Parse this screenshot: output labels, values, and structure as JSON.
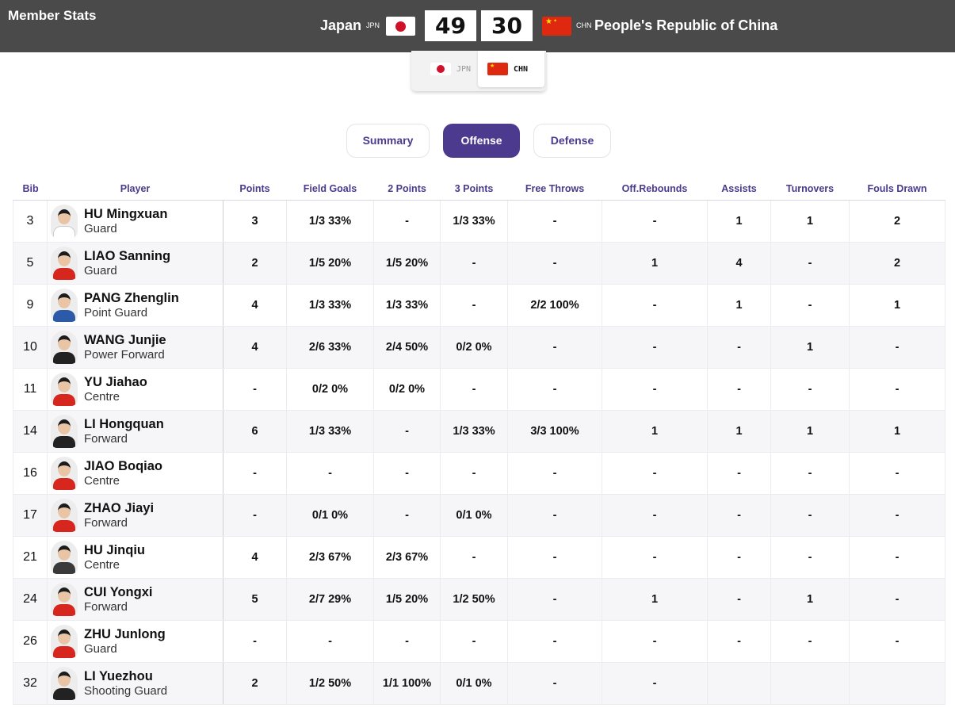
{
  "header": {
    "title": "Member Stats",
    "home": {
      "name": "Japan",
      "code": "JPN",
      "score": "49"
    },
    "away": {
      "name": "People's Republic of China",
      "code": "CHN",
      "score": "30"
    }
  },
  "team_toggle": {
    "options": [
      {
        "code": "JPN",
        "selected": false
      },
      {
        "code": "CHN",
        "selected": true
      }
    ]
  },
  "tabs": [
    {
      "label": "Summary",
      "active": false
    },
    {
      "label": "Offense",
      "active": true
    },
    {
      "label": "Defense",
      "active": false
    }
  ],
  "colors": {
    "accent": "#4b3a8e",
    "header_bg": "#4a4a4a"
  },
  "columns": [
    "Bib",
    "Player",
    "Points",
    "Field Goals",
    "2 Points",
    "3 Points",
    "Free Throws",
    "Off.Rebounds",
    "Assists",
    "Turnovers",
    "Fouls Drawn"
  ],
  "rows": [
    {
      "bib": "3",
      "name": "HU Mingxuan",
      "position": "Guard",
      "shirt": "#ffffff",
      "stats": [
        "3",
        "1/3 33%",
        "-",
        "1/3 33%",
        "-",
        "-",
        "1",
        "1",
        "2"
      ]
    },
    {
      "bib": "5",
      "name": "LIAO Sanning",
      "position": "Guard",
      "shirt": "#d7261e",
      "stats": [
        "2",
        "1/5 20%",
        "1/5 20%",
        "-",
        "-",
        "1",
        "4",
        "-",
        "2"
      ]
    },
    {
      "bib": "9",
      "name": "PANG Zhenglin",
      "position": "Point Guard",
      "shirt": "#2d5aa8",
      "stats": [
        "4",
        "1/3 33%",
        "1/3 33%",
        "-",
        "2/2 100%",
        "-",
        "1",
        "-",
        "1"
      ]
    },
    {
      "bib": "10",
      "name": "WANG Junjie",
      "position": "Power Forward",
      "shirt": "#222222",
      "stats": [
        "4",
        "2/6 33%",
        "2/4 50%",
        "0/2 0%",
        "-",
        "-",
        "-",
        "1",
        "-"
      ]
    },
    {
      "bib": "11",
      "name": "YU Jiahao",
      "position": "Centre",
      "shirt": "#d7261e",
      "stats": [
        "-",
        "0/2 0%",
        "0/2 0%",
        "-",
        "-",
        "-",
        "-",
        "-",
        "-"
      ]
    },
    {
      "bib": "14",
      "name": "LI Hongquan",
      "position": "Forward",
      "shirt": "#222222",
      "stats": [
        "6",
        "1/3 33%",
        "-",
        "1/3 33%",
        "3/3 100%",
        "1",
        "1",
        "1",
        "1"
      ]
    },
    {
      "bib": "16",
      "name": "JIAO Boqiao",
      "position": "Centre",
      "shirt": "#d7261e",
      "stats": [
        "-",
        "-",
        "-",
        "-",
        "-",
        "-",
        "-",
        "-",
        "-"
      ]
    },
    {
      "bib": "17",
      "name": "ZHAO Jiayi",
      "position": "Forward",
      "shirt": "#d7261e",
      "stats": [
        "-",
        "0/1 0%",
        "-",
        "0/1 0%",
        "-",
        "-",
        "-",
        "-",
        "-"
      ]
    },
    {
      "bib": "21",
      "name": "HU Jinqiu",
      "position": "Centre",
      "shirt": "#3a3a3a",
      "stats": [
        "4",
        "2/3 67%",
        "2/3 67%",
        "-",
        "-",
        "-",
        "-",
        "-",
        "-"
      ]
    },
    {
      "bib": "24",
      "name": "CUI Yongxi",
      "position": "Forward",
      "shirt": "#d7261e",
      "stats": [
        "5",
        "2/7 29%",
        "1/5 20%",
        "1/2 50%",
        "-",
        "1",
        "-",
        "1",
        "-"
      ]
    },
    {
      "bib": "26",
      "name": "ZHU Junlong",
      "position": "Guard",
      "shirt": "#d7261e",
      "stats": [
        "-",
        "-",
        "-",
        "-",
        "-",
        "-",
        "-",
        "-",
        "-"
      ]
    },
    {
      "bib": "32",
      "name": "LI Yuezhou",
      "position": "Shooting Guard",
      "shirt": "#222222",
      "stats": [
        "2",
        "1/2 50%",
        "1/1 100%",
        "0/1 0%",
        "-",
        "-",
        "",
        "",
        ""
      ]
    }
  ]
}
